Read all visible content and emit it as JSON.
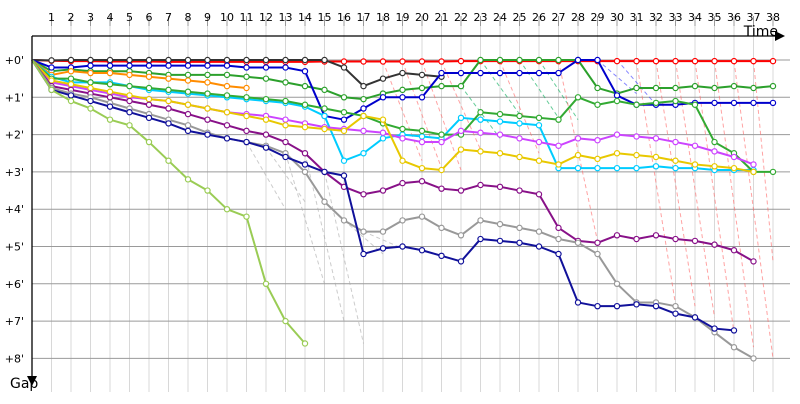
{
  "chart_data": {
    "type": "line",
    "title": "",
    "xlabel": "Time",
    "ylabel": "Gap",
    "x_ticks": [
      "1",
      "2",
      "3",
      "4",
      "5",
      "6",
      "7",
      "8",
      "9",
      "10",
      "11",
      "12",
      "13",
      "14",
      "15",
      "16",
      "17",
      "18",
      "19",
      "20",
      "21",
      "22",
      "23",
      "24",
      "25",
      "26",
      "27",
      "28",
      "29",
      "30",
      "31",
      "32",
      "33",
      "34",
      "35",
      "36",
      "37",
      "38"
    ],
    "y_ticks": [
      "+0'",
      "+1'",
      "+2'",
      "+3'",
      "+4'",
      "+5'",
      "+6'",
      "+7'",
      "+8'"
    ],
    "xlim": [
      0,
      39
    ],
    "ylim": [
      0,
      8.3
    ],
    "grid": true,
    "series": [
      {
        "color": "#ff0000",
        "values": [
          0,
          0.02,
          0.03,
          0.03,
          0.04,
          0.04,
          0.04,
          0.05,
          0.05,
          0.05,
          0.05,
          0.05,
          0.05,
          0.05,
          0.05,
          0.04,
          0.04,
          0.04,
          0.04,
          0.04,
          0.04,
          0.04,
          0.03,
          0.03,
          0.03,
          0.03,
          0.03,
          0.03,
          0.03,
          0.03,
          0.03,
          0.03,
          0.03,
          0.03,
          0.03,
          0.03,
          0.03,
          0.03,
          0.03
        ]
      },
      {
        "color": "#333333",
        "values": [
          0,
          0.01,
          0,
          0,
          0,
          0,
          0,
          0,
          0,
          0,
          0,
          0,
          0,
          0,
          0,
          0,
          0.2,
          0.7,
          0.5,
          0.35,
          0.4,
          0.45
        ]
      },
      {
        "color": "#2ca02c",
        "values": [
          0,
          0.3,
          0.25,
          0.3,
          0.3,
          0.3,
          0.35,
          0.4,
          0.4,
          0.4,
          0.4,
          0.45,
          0.5,
          0.6,
          0.7,
          0.8,
          1.0,
          1.05,
          0.9,
          0.8,
          0.75,
          0.7,
          0.7,
          0,
          0,
          0,
          0,
          0,
          0,
          0.75,
          0.9,
          0.75,
          0.75,
          0.75,
          0.7,
          0.75,
          0.7,
          0.75,
          0.7
        ]
      },
      {
        "color": "#0000cc",
        "values": [
          0,
          0.2,
          0.2,
          0.15,
          0.15,
          0.15,
          0.15,
          0.15,
          0.15,
          0.15,
          0.15,
          0.2,
          0.2,
          0.2,
          0.3,
          1.5,
          1.6,
          1.3,
          1.0,
          1.0,
          1.0,
          0.35,
          0.35,
          0.35,
          0.35,
          0.35,
          0.35,
          0.35,
          0,
          0,
          0.95,
          1.2,
          1.2,
          1.2,
          1.15,
          1.15,
          1.15,
          1.15,
          1.15
        ]
      },
      {
        "color": "#ff8c00",
        "values": [
          0,
          0.4,
          0.3,
          0.35,
          0.35,
          0.4,
          0.45,
          0.5,
          0.55,
          0.6,
          0.7,
          0.75
        ]
      },
      {
        "color": "#00ccff",
        "values": [
          0,
          0.45,
          0.6,
          0.6,
          0.6,
          0.7,
          0.8,
          0.85,
          0.9,
          0.95,
          1.0,
          1.05,
          1.1,
          1.15,
          1.25,
          1.5,
          2.7,
          2.5,
          2.1,
          2.0,
          2.05,
          2.1,
          1.55,
          1.6,
          1.65,
          1.7,
          1.75,
          2.9,
          2.9,
          2.9,
          2.9,
          2.9,
          2.85,
          2.9,
          2.9,
          2.95,
          2.95,
          2.95
        ]
      },
      {
        "color": "#33aa33",
        "values": [
          0,
          0.5,
          0.5,
          0.6,
          0.65,
          0.7,
          0.75,
          0.8,
          0.85,
          0.9,
          0.95,
          1.0,
          1.05,
          1.1,
          1.2,
          1.3,
          1.4,
          1.5,
          1.7,
          1.85,
          1.9,
          2.0,
          2.0,
          1.4,
          1.45,
          1.5,
          1.55,
          1.6,
          1.0,
          1.2,
          1.1,
          1.2,
          1.15,
          1.1,
          1.2,
          2.2,
          2.5,
          3.0,
          3.0
        ]
      },
      {
        "color": "#cc44ff",
        "values": [
          0,
          0.6,
          0.7,
          0.8,
          0.9,
          1.0,
          1.05,
          1.1,
          1.2,
          1.3,
          1.4,
          1.45,
          1.5,
          1.6,
          1.7,
          1.8,
          1.85,
          1.9,
          1.95,
          2.1,
          2.2,
          2.2,
          1.9,
          1.95,
          2.0,
          2.1,
          2.2,
          2.3,
          2.1,
          2.15,
          2.0,
          2.05,
          2.1,
          2.2,
          2.3,
          2.45,
          2.6,
          2.8
        ]
      },
      {
        "color": "#e8c800",
        "values": [
          0,
          0.55,
          0.65,
          0.75,
          0.85,
          0.95,
          1.05,
          1.1,
          1.2,
          1.3,
          1.4,
          1.5,
          1.6,
          1.75,
          1.8,
          1.85,
          1.9,
          1.5,
          1.6,
          2.7,
          2.9,
          2.95,
          2.4,
          2.45,
          2.5,
          2.6,
          2.7,
          2.8,
          2.55,
          2.65,
          2.5,
          2.55,
          2.6,
          2.7,
          2.8,
          2.85,
          2.9,
          3.0
        ]
      },
      {
        "color": "#881188",
        "values": [
          0,
          0.7,
          0.8,
          0.9,
          1.0,
          1.1,
          1.2,
          1.3,
          1.45,
          1.6,
          1.75,
          1.9,
          2.0,
          2.2,
          2.5,
          3.0,
          3.4,
          3.6,
          3.5,
          3.3,
          3.25,
          3.45,
          3.5,
          3.35,
          3.4,
          3.5,
          3.6,
          4.5,
          4.85,
          4.9,
          4.7,
          4.8,
          4.7,
          4.8,
          4.85,
          4.95,
          5.1,
          5.4
        ]
      },
      {
        "color": "#999999",
        "values": [
          0,
          0.75,
          0.9,
          1.0,
          1.15,
          1.3,
          1.45,
          1.6,
          1.75,
          1.95,
          2.1,
          2.2,
          2.3,
          2.5,
          3.0,
          3.8,
          4.3,
          4.6,
          4.6,
          4.3,
          4.2,
          4.5,
          4.7,
          4.3,
          4.4,
          4.5,
          4.6,
          4.8,
          4.9,
          5.2,
          6.0,
          6.5,
          6.5,
          6.6,
          6.9,
          7.3,
          7.7,
          8.0
        ]
      },
      {
        "color": "#11119a",
        "values": [
          0,
          0.8,
          0.95,
          1.1,
          1.25,
          1.4,
          1.55,
          1.7,
          1.9,
          2.0,
          2.1,
          2.2,
          2.35,
          2.6,
          2.8,
          3.0,
          3.1,
          5.2,
          5.05,
          5.0,
          5.1,
          5.25,
          5.4,
          4.8,
          4.85,
          4.9,
          5.0,
          5.2,
          6.5,
          6.6,
          6.6,
          6.55,
          6.6,
          6.8,
          6.9,
          7.2,
          7.25
        ]
      },
      {
        "color": "#9acc55",
        "values": [
          0,
          0.8,
          1.1,
          1.3,
          1.6,
          1.75,
          2.2,
          2.7,
          3.2,
          3.5,
          4.0,
          4.2,
          6.0,
          7.0,
          7.6
        ]
      }
    ],
    "gap_lines": [
      {
        "color": "#aaaaaa",
        "from": [
          11,
          2.2
        ],
        "to": [
          13,
          4.0
        ]
      },
      {
        "color": "#aaaaaa",
        "from": [
          12,
          2.35
        ],
        "to": [
          14,
          3.8
        ]
      },
      {
        "color": "#aaaaaa",
        "from": [
          13,
          2.5
        ],
        "to": [
          15,
          6.0
        ]
      },
      {
        "color": "#aaaaaa",
        "from": [
          14,
          2.5
        ],
        "to": [
          16,
          7.0
        ]
      },
      {
        "color": "#aaaaaa",
        "from": [
          15,
          3.0
        ],
        "to": [
          17,
          7.6
        ]
      },
      {
        "color": "#aaaaaa",
        "from": [
          16,
          4.3
        ],
        "to": [
          18,
          5.2
        ]
      },
      {
        "color": "#aaaaaa",
        "from": [
          17,
          4.6
        ],
        "to": [
          19,
          5.05
        ]
      },
      {
        "color": "#00aa55",
        "from": [
          22,
          0.7
        ],
        "to": [
          24,
          2.1
        ]
      },
      {
        "color": "#00aa55",
        "from": [
          23,
          0.0
        ],
        "to": [
          25,
          1.45
        ]
      },
      {
        "color": "#00aa55",
        "from": [
          25,
          0.0
        ],
        "to": [
          27,
          1.55
        ]
      },
      {
        "color": "#00aa55",
        "from": [
          26,
          0.0
        ],
        "to": [
          28,
          1.6
        ]
      },
      {
        "color": "#3333ff",
        "from": [
          29,
          0.0
        ],
        "to": [
          31,
          0.9
        ]
      },
      {
        "color": "#3333ff",
        "from": [
          30,
          0.0
        ],
        "to": [
          32,
          1.2
        ]
      },
      {
        "color": "#ff6666",
        "from": [
          18,
          0.04
        ],
        "to": [
          20,
          2.7
        ]
      },
      {
        "color": "#ff6666",
        "from": [
          19,
          0.04
        ],
        "to": [
          21,
          2.9
        ]
      },
      {
        "color": "#ff6666",
        "from": [
          20,
          0.04
        ],
        "to": [
          22,
          2.95
        ]
      },
      {
        "color": "#ff6666",
        "from": [
          21,
          0.04
        ],
        "to": [
          23,
          2.4
        ]
      },
      {
        "color": "#ff6666",
        "from": [
          24,
          0.03
        ],
        "to": [
          26,
          2.5
        ]
      },
      {
        "color": "#ff6666",
        "from": [
          27,
          0.03
        ],
        "to": [
          29,
          4.85
        ]
      },
      {
        "color": "#ff6666",
        "from": [
          31,
          0.03
        ],
        "to": [
          33,
          6.55
        ]
      },
      {
        "color": "#ff6666",
        "from": [
          32,
          0.03
        ],
        "to": [
          34,
          6.6
        ]
      },
      {
        "color": "#ff6666",
        "from": [
          33,
          0.03
        ],
        "to": [
          35,
          6.9
        ]
      },
      {
        "color": "#ff6666",
        "from": [
          34,
          0.03
        ],
        "to": [
          36,
          7.3
        ]
      },
      {
        "color": "#ff6666",
        "from": [
          35,
          0.03
        ],
        "to": [
          37,
          7.7
        ]
      },
      {
        "color": "#ff6666",
        "from": [
          36,
          0.03
        ],
        "to": [
          38,
          8.0
        ]
      },
      {
        "color": "#ff6666",
        "from": [
          37,
          0.03
        ],
        "to": [
          38,
          5.4
        ]
      }
    ]
  }
}
